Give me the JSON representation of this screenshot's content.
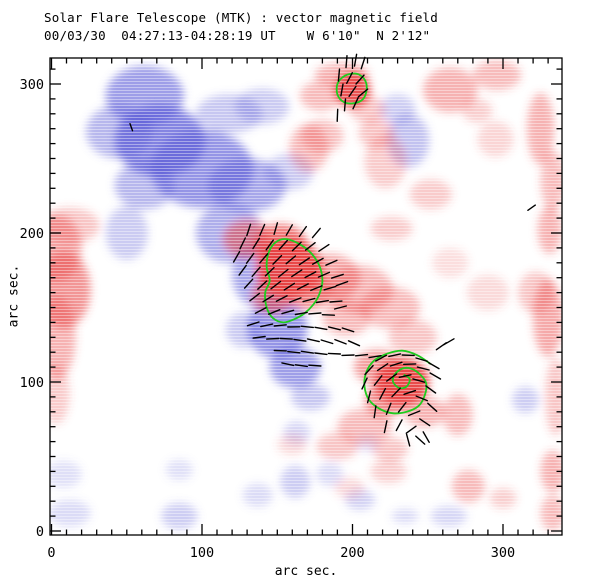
{
  "colors": {
    "positive": "#e84040",
    "negative": "#5e5ed8",
    "contour": "#1ecc1e",
    "vector": "#000000",
    "frame": "#000000",
    "background": "#ffffff"
  },
  "chart_data": {
    "type": "heatmap",
    "title": "Solar Flare Telescope (MTK) : vector magnetic field",
    "subtitle": "00/03/30  04:27:13-04:28:19 UT    W 6'10\"  N 2'12\"",
    "xlabel": "arc sec.",
    "ylabel": "arc sec.",
    "xlim": [
      0,
      339
    ],
    "ylim": [
      0,
      317
    ],
    "xticks": [
      0,
      100,
      200,
      300
    ],
    "yticks": [
      0,
      100,
      200,
      300
    ],
    "minor_tick_step": 10,
    "grid": false,
    "legend": "none",
    "blobs_units": "arc sec, [cx, cy, rx, ry, opacity]",
    "blobs_positive": [
      [
        4,
        190,
        16,
        22,
        0.45
      ],
      [
        8,
        162,
        18,
        26,
        0.55
      ],
      [
        4,
        130,
        12,
        28,
        0.4
      ],
      [
        12,
        205,
        20,
        12,
        0.3
      ],
      [
        3,
        92,
        9,
        20,
        0.28
      ],
      [
        200,
        296,
        12,
        12,
        0.9
      ],
      [
        193,
        306,
        18,
        8,
        0.4
      ],
      [
        179,
        292,
        14,
        10,
        0.35
      ],
      [
        210,
        283,
        12,
        9,
        0.3
      ],
      [
        171,
        257,
        13,
        16,
        0.35
      ],
      [
        180,
        265,
        14,
        11,
        0.32
      ],
      [
        216,
        267,
        12,
        10,
        0.3
      ],
      [
        222,
        248,
        14,
        18,
        0.28
      ],
      [
        265,
        296,
        18,
        15,
        0.4
      ],
      [
        296,
        306,
        16,
        10,
        0.35
      ],
      [
        283,
        282,
        10,
        8,
        0.25
      ],
      [
        325,
        270,
        9,
        24,
        0.4
      ],
      [
        333,
        235,
        8,
        20,
        0.35
      ],
      [
        331,
        202,
        8,
        16,
        0.4
      ],
      [
        252,
        226,
        14,
        10,
        0.28
      ],
      [
        295,
        263,
        12,
        12,
        0.22
      ],
      [
        330,
        143,
        10,
        26,
        0.45
      ],
      [
        322,
        160,
        12,
        14,
        0.3
      ],
      [
        335,
        90,
        7,
        26,
        0.3
      ],
      [
        333,
        12,
        8,
        12,
        0.35
      ],
      [
        130,
        196,
        16,
        13,
        0.55
      ],
      [
        152,
        192,
        18,
        14,
        0.7
      ],
      [
        158,
        176,
        22,
        20,
        0.95
      ],
      [
        147,
        158,
        14,
        12,
        0.6
      ],
      [
        170,
        162,
        16,
        14,
        0.55
      ],
      [
        185,
        170,
        20,
        16,
        0.45
      ],
      [
        205,
        162,
        22,
        16,
        0.38
      ],
      [
        226,
        203,
        14,
        8,
        0.28
      ],
      [
        225,
        150,
        20,
        14,
        0.35
      ],
      [
        196,
        143,
        16,
        12,
        0.35
      ],
      [
        240,
        130,
        16,
        12,
        0.3
      ],
      [
        233,
        100,
        18,
        16,
        0.95
      ],
      [
        217,
        110,
        16,
        12,
        0.5
      ],
      [
        222,
        88,
        14,
        12,
        0.55
      ],
      [
        248,
        80,
        14,
        10,
        0.4
      ],
      [
        208,
        70,
        18,
        12,
        0.35
      ],
      [
        190,
        57,
        14,
        9,
        0.3
      ],
      [
        225,
        55,
        12,
        8,
        0.3
      ],
      [
        270,
        78,
        10,
        14,
        0.35
      ],
      [
        277,
        30,
        11,
        11,
        0.35
      ],
      [
        333,
        40,
        8,
        14,
        0.4
      ],
      [
        300,
        22,
        9,
        7,
        0.25
      ],
      [
        224,
        40,
        12,
        8,
        0.25
      ],
      [
        198,
        29,
        10,
        7,
        0.2
      ],
      [
        290,
        160,
        14,
        12,
        0.2
      ],
      [
        265,
        180,
        12,
        10,
        0.18
      ],
      [
        160,
        58,
        10,
        7,
        0.2
      ]
    ],
    "blobs_negative": [
      [
        62,
        292,
        26,
        20,
        0.6
      ],
      [
        45,
        268,
        22,
        18,
        0.45
      ],
      [
        72,
        262,
        30,
        24,
        0.75
      ],
      [
        100,
        243,
        34,
        26,
        0.65
      ],
      [
        62,
        232,
        20,
        16,
        0.45
      ],
      [
        50,
        200,
        14,
        18,
        0.32
      ],
      [
        130,
        232,
        26,
        18,
        0.55
      ],
      [
        140,
        285,
        18,
        12,
        0.32
      ],
      [
        118,
        280,
        22,
        13,
        0.35
      ],
      [
        158,
        241,
        16,
        12,
        0.32
      ],
      [
        118,
        200,
        22,
        20,
        0.5
      ],
      [
        138,
        172,
        18,
        22,
        0.55
      ],
      [
        150,
        136,
        20,
        20,
        0.65
      ],
      [
        128,
        135,
        12,
        12,
        0.32
      ],
      [
        162,
        110,
        17,
        14,
        0.6
      ],
      [
        172,
        90,
        13,
        9,
        0.35
      ],
      [
        237,
        262,
        14,
        18,
        0.38
      ],
      [
        230,
        283,
        12,
        10,
        0.3
      ],
      [
        85,
        41,
        9,
        7,
        0.2
      ],
      [
        85,
        10,
        12,
        9,
        0.3
      ],
      [
        137,
        24,
        10,
        8,
        0.22
      ],
      [
        163,
        66,
        9,
        8,
        0.25
      ],
      [
        162,
        33,
        10,
        11,
        0.3
      ],
      [
        12,
        12,
        14,
        9,
        0.22
      ],
      [
        205,
        21,
        10,
        7,
        0.28
      ],
      [
        235,
        10,
        9,
        5,
        0.22
      ],
      [
        264,
        10,
        12,
        7,
        0.25
      ],
      [
        315,
        88,
        9,
        9,
        0.3
      ],
      [
        210,
        59,
        8,
        6,
        0.2
      ],
      [
        185,
        38,
        9,
        8,
        0.22
      ],
      [
        8,
        38,
        12,
        9,
        0.2
      ]
    ],
    "contours": [
      {
        "name": "central-flux-contour",
        "closed": true,
        "points": [
          [
            155,
            196
          ],
          [
            148,
            193
          ],
          [
            144,
            186
          ],
          [
            143,
            177
          ],
          [
            145,
            168
          ],
          [
            142,
            160
          ],
          [
            143,
            150
          ],
          [
            147,
            143
          ],
          [
            154,
            140
          ],
          [
            161,
            142
          ],
          [
            168,
            146
          ],
          [
            174,
            152
          ],
          [
            178,
            159
          ],
          [
            180,
            168
          ],
          [
            178,
            178
          ],
          [
            172,
            187
          ],
          [
            164,
            193
          ]
        ]
      },
      {
        "name": "north-flux-contour",
        "closed": true,
        "points": [
          [
            200,
            307
          ],
          [
            194,
            305
          ],
          [
            190,
            300
          ],
          [
            190,
            293
          ],
          [
            194,
            288
          ],
          [
            200,
            287
          ],
          [
            206,
            289
          ],
          [
            209,
            294
          ],
          [
            209,
            301
          ],
          [
            205,
            306
          ]
        ]
      },
      {
        "name": "spiral-flux-contour",
        "closed": false,
        "points": [
          [
            252,
            112
          ],
          [
            243,
            118
          ],
          [
            233,
            121
          ],
          [
            223,
            119
          ],
          [
            214,
            114
          ],
          [
            209,
            106
          ],
          [
            208,
            97
          ],
          [
            211,
            88
          ],
          [
            218,
            82
          ],
          [
            227,
            79
          ],
          [
            236,
            80
          ],
          [
            244,
            84
          ],
          [
            248,
            91
          ],
          [
            249,
            99
          ],
          [
            245,
            105
          ],
          [
            239,
            109
          ],
          [
            233,
            109
          ],
          [
            228,
            105
          ],
          [
            227,
            100
          ],
          [
            231,
            96
          ],
          [
            236,
            97
          ],
          [
            238,
            102
          ],
          [
            234,
            105
          ]
        ]
      }
    ],
    "vectors_units": "arc sec, [x, y, angle_deg, optional_length]",
    "vectors_default_length": 8,
    "vectors": [
      [
        196,
        315,
        85
      ],
      [
        202,
        316,
        80
      ],
      [
        207,
        314,
        72
      ],
      [
        191,
        306,
        85
      ],
      [
        198,
        304,
        62
      ],
      [
        205,
        303,
        48
      ],
      [
        193,
        296,
        80
      ],
      [
        200,
        295,
        55
      ],
      [
        207,
        294,
        40
      ],
      [
        195,
        286,
        85
      ],
      [
        202,
        287,
        65
      ],
      [
        190,
        279,
        88
      ],
      [
        131,
        202,
        72
      ],
      [
        140,
        202,
        66
      ],
      [
        149,
        203,
        74
      ],
      [
        158,
        202,
        60
      ],
      [
        167,
        201,
        55
      ],
      [
        176,
        200,
        50
      ],
      [
        127,
        193,
        64
      ],
      [
        136,
        193,
        58
      ],
      [
        145,
        192,
        54
      ],
      [
        154,
        192,
        48
      ],
      [
        163,
        191,
        44
      ],
      [
        172,
        191,
        38
      ],
      [
        181,
        190,
        33
      ],
      [
        123,
        184,
        60
      ],
      [
        132,
        183,
        54
      ],
      [
        141,
        183,
        49
      ],
      [
        150,
        182,
        45
      ],
      [
        159,
        182,
        40
      ],
      [
        168,
        181,
        34
      ],
      [
        177,
        181,
        29
      ],
      [
        186,
        180,
        24
      ],
      [
        127,
        175,
        54
      ],
      [
        136,
        174,
        49
      ],
      [
        145,
        174,
        44
      ],
      [
        154,
        173,
        39
      ],
      [
        163,
        173,
        34
      ],
      [
        172,
        172,
        28
      ],
      [
        181,
        172,
        23
      ],
      [
        190,
        171,
        18
      ],
      [
        131,
        166,
        48
      ],
      [
        140,
        165,
        43
      ],
      [
        149,
        165,
        38
      ],
      [
        158,
        164,
        33
      ],
      [
        167,
        164,
        27
      ],
      [
        176,
        163,
        22
      ],
      [
        185,
        163,
        16
      ],
      [
        193,
        166,
        20
      ],
      [
        135,
        157,
        38
      ],
      [
        144,
        156,
        32
      ],
      [
        153,
        156,
        27
      ],
      [
        162,
        155,
        21
      ],
      [
        171,
        155,
        15
      ],
      [
        180,
        154,
        9
      ],
      [
        189,
        154,
        4
      ],
      [
        139,
        148,
        28
      ],
      [
        148,
        147,
        22
      ],
      [
        157,
        147,
        16
      ],
      [
        166,
        146,
        10
      ],
      [
        175,
        146,
        4
      ],
      [
        184,
        145,
        -2
      ],
      [
        192,
        150,
        14
      ],
      [
        134,
        139,
        18
      ],
      [
        143,
        138,
        12
      ],
      [
        152,
        138,
        6
      ],
      [
        161,
        137,
        1
      ],
      [
        170,
        137,
        -5
      ],
      [
        179,
        136,
        -10
      ],
      [
        188,
        136,
        -14
      ],
      [
        197,
        135,
        -18
      ],
      [
        138,
        130,
        8
      ],
      [
        147,
        129,
        3
      ],
      [
        156,
        129,
        -3
      ],
      [
        165,
        128,
        -8
      ],
      [
        174,
        128,
        -13
      ],
      [
        183,
        127,
        -17
      ],
      [
        192,
        127,
        -21
      ],
      [
        201,
        126,
        -24
      ],
      [
        152,
        121,
        -2
      ],
      [
        161,
        120,
        -6
      ],
      [
        170,
        120,
        -9
      ],
      [
        179,
        119,
        -7
      ],
      [
        188,
        119,
        -3
      ],
      [
        197,
        118,
        2
      ],
      [
        206,
        118,
        6
      ],
      [
        215,
        117,
        9
      ],
      [
        157,
        112,
        -12
      ],
      [
        166,
        111,
        -8
      ],
      [
        175,
        111,
        -4
      ],
      [
        219,
        116,
        28
      ],
      [
        228,
        118,
        12
      ],
      [
        237,
        118,
        -2
      ],
      [
        246,
        115,
        -16
      ],
      [
        254,
        111,
        -30
      ],
      [
        259,
        124,
        35
      ],
      [
        264,
        127,
        30
      ],
      [
        211,
        108,
        48
      ],
      [
        220,
        110,
        33
      ],
      [
        229,
        112,
        18
      ],
      [
        238,
        112,
        2
      ],
      [
        247,
        109,
        -14
      ],
      [
        255,
        104,
        -30
      ],
      [
        208,
        99,
        65
      ],
      [
        217,
        101,
        52
      ],
      [
        226,
        103,
        36
      ],
      [
        235,
        104,
        12
      ],
      [
        244,
        101,
        -16
      ],
      [
        252,
        95,
        -36
      ],
      [
        211,
        90,
        76
      ],
      [
        220,
        92,
        62
      ],
      [
        229,
        93,
        46
      ],
      [
        238,
        93,
        18
      ],
      [
        246,
        89,
        -22
      ],
      [
        253,
        83,
        -42
      ],
      [
        215,
        80,
        82
      ],
      [
        224,
        82,
        68
      ],
      [
        233,
        83,
        52
      ],
      [
        241,
        79,
        22
      ],
      [
        248,
        73,
        -34
      ],
      [
        222,
        70,
        78
      ],
      [
        231,
        71,
        62
      ],
      [
        239,
        68,
        36
      ],
      [
        245,
        61,
        -42
      ],
      [
        249,
        63,
        -60
      ],
      [
        237,
        61,
        -75
      ],
      [
        53,
        271,
        -70,
        5
      ],
      [
        319,
        217,
        35,
        6
      ]
    ]
  }
}
